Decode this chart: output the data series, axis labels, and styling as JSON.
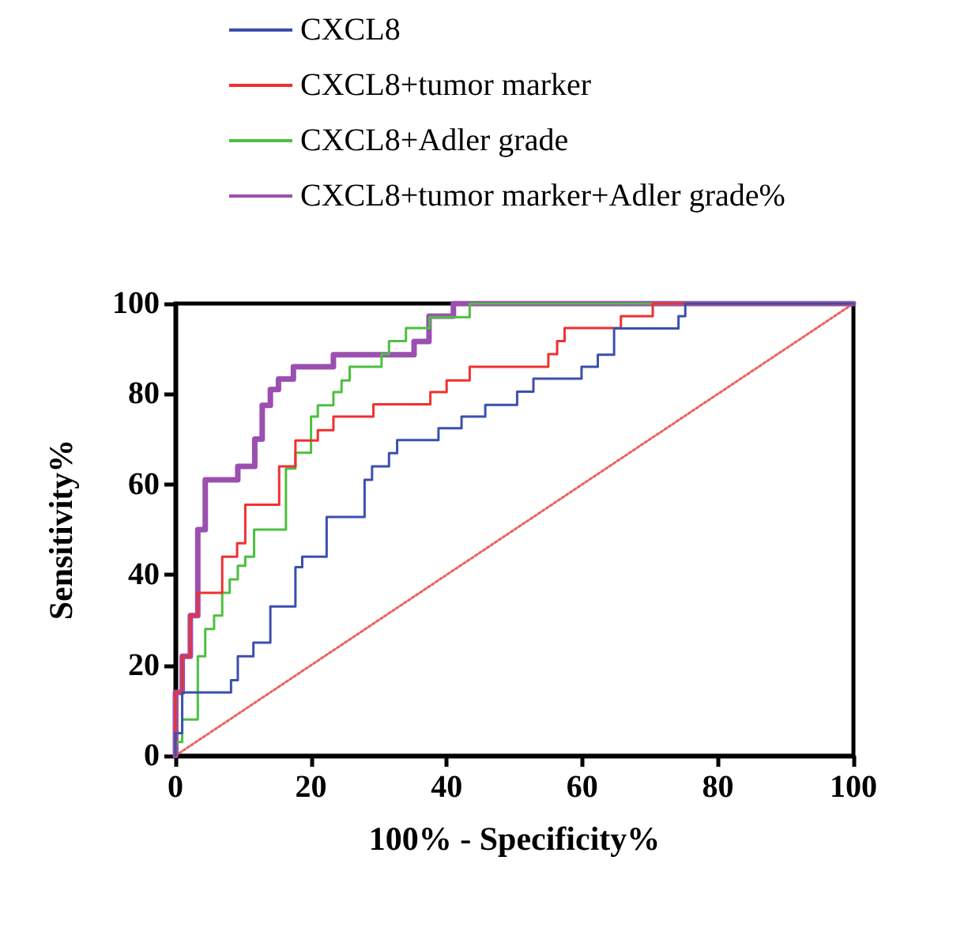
{
  "chart_data": {
    "type": "step",
    "xlabel": "100% - Specificity%",
    "ylabel": "Sensitivity%",
    "xlim": [
      0,
      100
    ],
    "ylim": [
      0,
      100
    ],
    "xticks": [
      0,
      20,
      40,
      60,
      80,
      100
    ],
    "yticks": [
      0,
      20,
      40,
      60,
      80,
      100
    ],
    "grid": false,
    "legend": "top left",
    "marker": "none",
    "series": [
      {
        "name": "CXCL8",
        "color": "#3b4fb0",
        "x": [
          0,
          0,
          1,
          8.2,
          9.2,
          11.5,
          14,
          17.7,
          18.7,
          22.3,
          27.9,
          29,
          31.5,
          32.7,
          38.8,
          42.2,
          45.7,
          50.4,
          52.8,
          59.9,
          62.3,
          64.7,
          74.2,
          75.2,
          100
        ],
        "values": [
          0,
          5,
          14,
          16.7,
          22,
          25,
          33,
          41.7,
          44,
          52.8,
          61,
          64,
          66.9,
          69.8,
          72.4,
          75,
          77.6,
          80.5,
          83.4,
          86,
          88.7,
          94.5,
          97.2,
          100,
          100
        ]
      },
      {
        "name": "CXCL8+tumor marker",
        "color": "#f03030",
        "x": [
          0,
          0,
          1,
          2.2,
          3.3,
          6.9,
          9.1,
          10.3,
          15.3,
          17.7,
          21,
          23.3,
          29.2,
          37.6,
          40,
          43.4,
          55,
          56.3,
          57.4,
          65.7,
          70.4,
          100
        ],
        "values": [
          0,
          14,
          22,
          31,
          36,
          44,
          47,
          55.5,
          64,
          69.7,
          72,
          75,
          77.7,
          80.4,
          83,
          86,
          88.8,
          91.7,
          94.6,
          97.2,
          100,
          100
        ]
      },
      {
        "name": "CXCL8+Adler grade",
        "color": "#4cc040",
        "x": [
          0,
          0,
          1,
          3.3,
          4.4,
          5.7,
          6.9,
          8,
          9.2,
          10.3,
          11.6,
          16.3,
          17.7,
          20,
          21,
          23.3,
          24.5,
          25.7,
          30.4,
          31.5,
          34,
          37.5,
          43.4,
          100
        ],
        "values": [
          0,
          3,
          8,
          22,
          28,
          31,
          36,
          39,
          42,
          44,
          50,
          63.5,
          67,
          75,
          77.5,
          80.4,
          83,
          86,
          88.8,
          91.7,
          94.6,
          97,
          100,
          100
        ]
      },
      {
        "name": "CXCL8+tumor marker+Adler grade%",
        "color": "#9b4fb0",
        "x": [
          0,
          0,
          1,
          2.2,
          3.3,
          4.4,
          9.2,
          11.7,
          12.8,
          14,
          15.2,
          17.4,
          23.3,
          35.2,
          37.4,
          41,
          100
        ],
        "values": [
          0,
          14,
          22,
          31,
          50,
          61,
          64,
          70,
          77.5,
          81,
          83.3,
          86,
          88.7,
          91.6,
          97.2,
          100,
          100
        ]
      },
      {
        "type": "line",
        "color": "#f06060",
        "line_style": "dotted",
        "x": [
          0,
          100
        ],
        "values": [
          0,
          100
        ]
      }
    ]
  }
}
